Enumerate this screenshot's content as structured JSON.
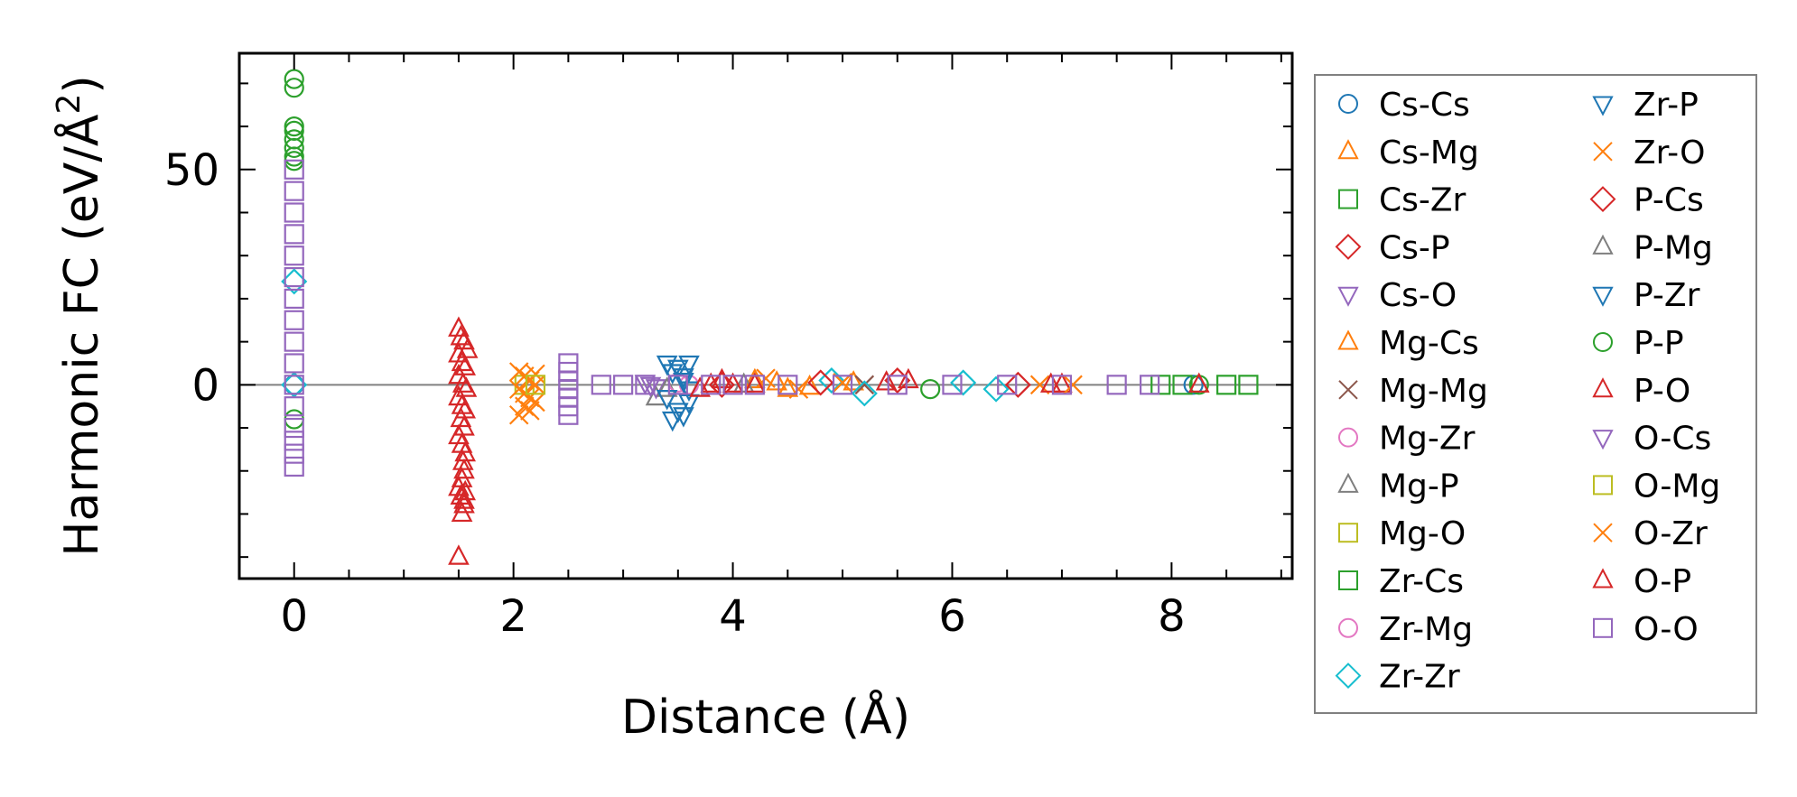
{
  "chart_data": {
    "type": "scatter",
    "title": "",
    "xlabel": "Distance (Å)",
    "ylabel": "Harmonic FC (eV/Å",
    "ylabel_sup": "2",
    "ylabel_end": ")",
    "xlim": [
      -0.5,
      9.1
    ],
    "ylim": [
      -45,
      77
    ],
    "xticks": [
      0,
      2,
      4,
      6,
      8
    ],
    "xtick_labels": [
      "0",
      "2",
      "4",
      "6",
      "8"
    ],
    "yticks": [
      0,
      50
    ],
    "ytick_labels": [
      "0",
      "50"
    ],
    "x_minor_step": 0.5,
    "y_minor_step": 10,
    "hline": 0,
    "legend_position": "outside right",
    "series": [
      {
        "name": "Cs-Cs",
        "marker": "circle",
        "color": "#1f77b4",
        "x": [
          0,
          8.2
        ],
        "y": [
          0,
          0
        ]
      },
      {
        "name": "Cs-Mg",
        "marker": "triangle-up",
        "color": "#ff7f0e",
        "x": [
          4.2,
          4.5,
          5.1
        ],
        "y": [
          1,
          -1,
          0.5
        ]
      },
      {
        "name": "Cs-Zr",
        "marker": "square",
        "color": "#2ca02c",
        "x": [
          8.5,
          8.7
        ],
        "y": [
          0,
          0
        ]
      },
      {
        "name": "Cs-P",
        "marker": "diamond",
        "color": "#d62728",
        "x": [
          3.9,
          5.5
        ],
        "y": [
          0,
          1
        ]
      },
      {
        "name": "Cs-O",
        "marker": "triangle-down",
        "color": "#9467bd",
        "x": [
          3.2,
          3.3
        ],
        "y": [
          0.5,
          -0.5
        ]
      },
      {
        "name": "Mg-Cs",
        "marker": "triangle-up",
        "color": "#ff7f0e",
        "x": [
          4.4,
          4.7
        ],
        "y": [
          0.5,
          -0.5
        ]
      },
      {
        "name": "Mg-Mg",
        "marker": "x",
        "color": "#8c564b",
        "x": [
          5.2
        ],
        "y": [
          0
        ]
      },
      {
        "name": "Mg-Zr",
        "marker": "circle",
        "color": "#e377c2",
        "x": [
          3.6
        ],
        "y": [
          0
        ]
      },
      {
        "name": "Mg-P",
        "marker": "triangle-up",
        "color": "#7f7f7f",
        "x": [
          3.3,
          3.4
        ],
        "y": [
          -3,
          -1
        ]
      },
      {
        "name": "Mg-O",
        "marker": "square",
        "color": "#bcbd22",
        "x": [
          2.1
        ],
        "y": [
          0
        ]
      },
      {
        "name": "Zr-Cs",
        "marker": "square",
        "color": "#2ca02c",
        "x": [
          7.9,
          8.1
        ],
        "y": [
          0,
          0
        ]
      },
      {
        "name": "Zr-Mg",
        "marker": "circle",
        "color": "#e377c2",
        "x": [
          3.5
        ],
        "y": [
          0.5
        ]
      },
      {
        "name": "Zr-Zr",
        "marker": "diamond",
        "color": "#17becf",
        "x": [
          0,
          0,
          4.9,
          5.2,
          6.1,
          6.4
        ],
        "y": [
          0,
          24,
          1,
          -2,
          0.5,
          -1
        ]
      },
      {
        "name": "Zr-P",
        "marker": "triangle-down",
        "color": "#1f77b4",
        "x": [
          3.4,
          3.45,
          3.5,
          3.55,
          3.6,
          3.4,
          3.5,
          3.6,
          3.45,
          3.55
        ],
        "y": [
          5,
          3,
          4,
          2,
          5,
          -3,
          -6,
          -4,
          -8,
          -7
        ]
      },
      {
        "name": "Zr-O",
        "marker": "x",
        "color": "#ff7f0e",
        "x": [
          2.05,
          2.1,
          2.15,
          2.2,
          2.05,
          2.1,
          2.15,
          2.2,
          2.1,
          2.15,
          2.05,
          2.2
        ],
        "y": [
          3,
          2,
          1,
          0,
          -1,
          -2,
          -3,
          -4,
          -5,
          -6,
          -7,
          2.5
        ]
      },
      {
        "name": "P-Cs",
        "marker": "diamond",
        "color": "#d62728",
        "x": [
          4.8,
          6.6
        ],
        "y": [
          0.5,
          0
        ]
      },
      {
        "name": "P-Mg",
        "marker": "triangle-up",
        "color": "#7f7f7f",
        "x": [
          4.1
        ],
        "y": [
          0
        ]
      },
      {
        "name": "P-Zr",
        "marker": "triangle-down",
        "color": "#1f77b4",
        "x": [
          3.55,
          3.6
        ],
        "y": [
          1,
          -1
        ]
      },
      {
        "name": "P-P",
        "marker": "circle",
        "color": "#2ca02c",
        "x": [
          0,
          0,
          0,
          0,
          0,
          0,
          0,
          0,
          0,
          5.8,
          8.25
        ],
        "y": [
          71,
          69,
          60,
          59,
          57,
          55,
          53,
          52,
          -8,
          -1,
          0
        ]
      },
      {
        "name": "P-O",
        "marker": "triangle-up",
        "color": "#d62728",
        "x": [
          1.5,
          1.52,
          1.55,
          1.58,
          1.5,
          1.53,
          1.56,
          1.5,
          1.54,
          1.57,
          1.5,
          1.53,
          1.56,
          1.52,
          1.55,
          1.5,
          1.53,
          1.56,
          1.54,
          1.55,
          1.53,
          1.5,
          1.56,
          1.52,
          1.55,
          1.53,
          1.55,
          1.5,
          3.8,
          4.0,
          5.6,
          7.0,
          8.25
        ],
        "y": [
          13,
          11,
          10,
          8,
          7,
          5,
          4,
          2,
          0,
          -1,
          -3,
          -5,
          -6,
          -8,
          -10,
          -12,
          -14,
          -16,
          -18,
          -20,
          -22,
          -24,
          -25,
          -26,
          -27,
          -30,
          -28,
          -40,
          0,
          0,
          1,
          0,
          0
        ]
      },
      {
        "name": "O-Cs",
        "marker": "triangle-down",
        "color": "#9467bd",
        "x": [
          3.25
        ],
        "y": [
          0
        ]
      },
      {
        "name": "O-Mg",
        "marker": "square",
        "color": "#bcbd22",
        "x": [
          2.2
        ],
        "y": [
          0
        ]
      },
      {
        "name": "O-Zr",
        "marker": "x",
        "color": "#ff7f0e",
        "x": [
          4.3,
          4.6,
          5.0,
          6.8,
          7.1
        ],
        "y": [
          1.5,
          -1,
          0.5,
          0,
          0
        ]
      },
      {
        "name": "O-P",
        "marker": "triangle-up",
        "color": "#d62728",
        "x": [
          3.7,
          3.9,
          4.2,
          5.4,
          6.9
        ],
        "y": [
          -1,
          1,
          0,
          0.5,
          0
        ]
      },
      {
        "name": "O-O",
        "marker": "square",
        "color": "#9467bd",
        "x": [
          0,
          0,
          0,
          0,
          0,
          0,
          0,
          0,
          0,
          0,
          0,
          0,
          0,
          0,
          0,
          0,
          2.5,
          2.5,
          2.5,
          2.5,
          2.5,
          2.5,
          2.5,
          2.8,
          3.0,
          3.2,
          3.5,
          3.8,
          4.0,
          4.2,
          4.5,
          5.0,
          5.5,
          6.0,
          6.5,
          7.0,
          7.5,
          7.8
        ],
        "y": [
          50,
          45,
          40,
          35,
          30,
          25,
          20,
          15,
          10,
          5,
          0,
          -5,
          -10,
          -13,
          -16,
          -19,
          5,
          3,
          1,
          -1,
          -3,
          -5,
          -7,
          0,
          0,
          0,
          0,
          0,
          0,
          0,
          0,
          0,
          0,
          0,
          0,
          0,
          0,
          0
        ]
      }
    ]
  }
}
